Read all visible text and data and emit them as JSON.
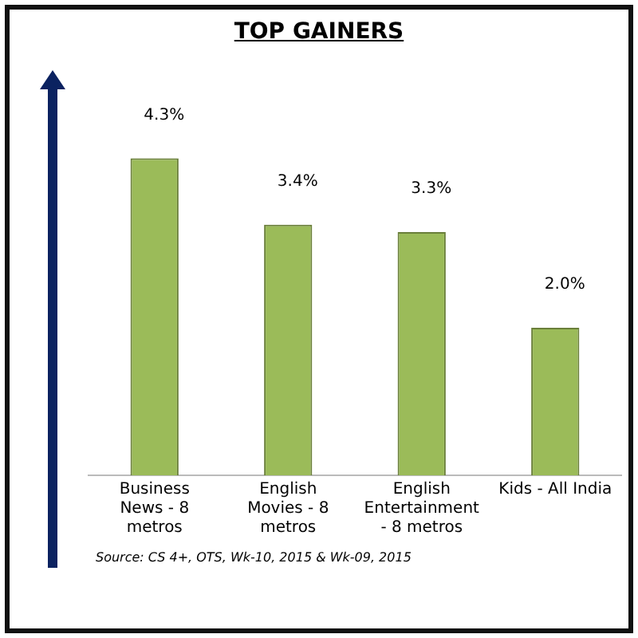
{
  "chart_data": {
    "type": "bar",
    "title": "TOP GAINERS",
    "categories": [
      "Business News - 8 metros",
      "English Movies - 8 metros",
      "English Entertainment - 8 metros",
      "Kids - All India"
    ],
    "values": [
      4.3,
      3.4,
      3.3,
      2.0
    ],
    "color": "#9bbb59",
    "value_labels": [
      "4.3%",
      "3.4%",
      "3.3%",
      "2.0%"
    ],
    "annotations": [
      "Source: CS 4+,  OTS, Wk-10, 2015 & Wk-09, 2015"
    ],
    "grid": false,
    "legend": false
  }
}
